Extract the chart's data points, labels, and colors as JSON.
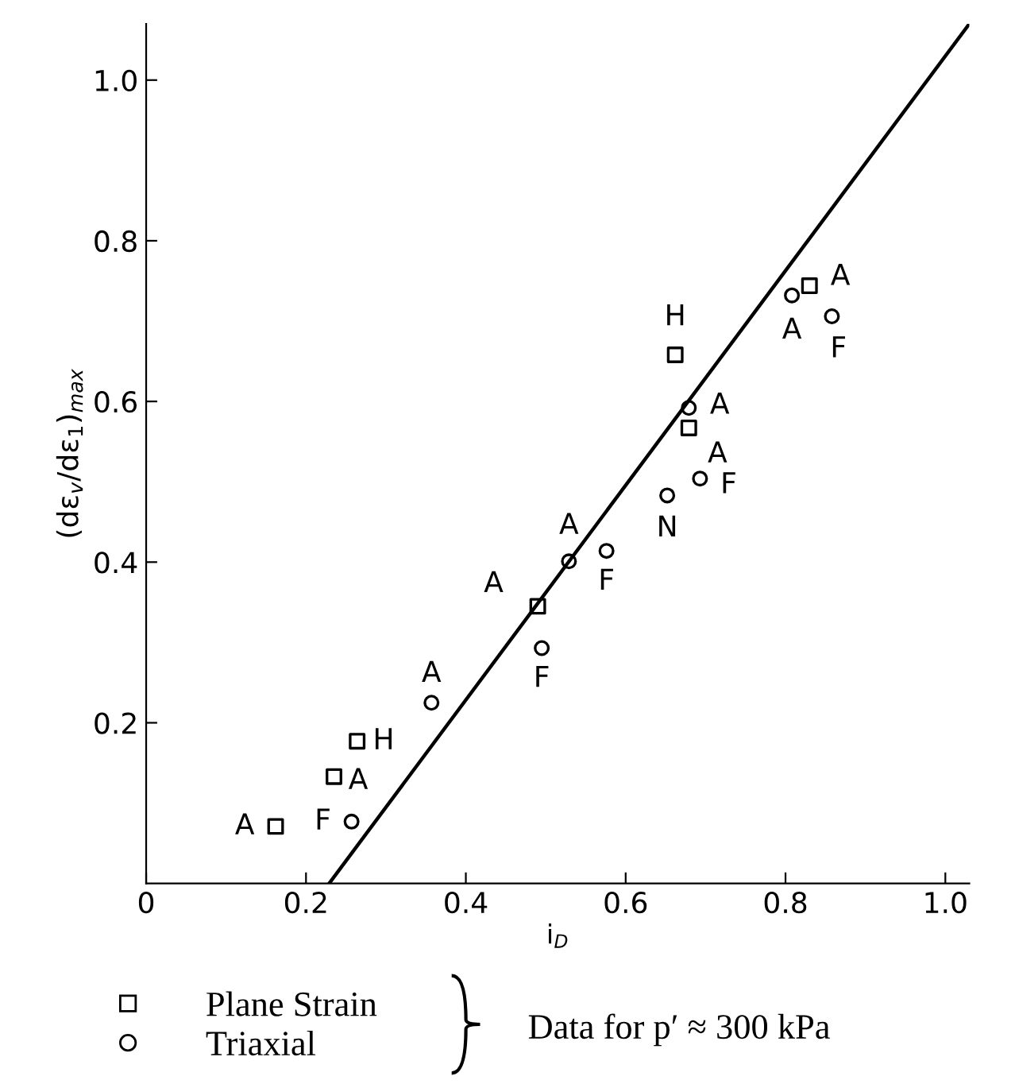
{
  "chart_data": {
    "type": "scatter",
    "xlabel": "i$_{D}$",
    "ylabel": "(dε$_{v}$/dε$_{1}$)$_{max}$",
    "xlim": [
      0,
      1.03
    ],
    "ylim": [
      0,
      1.07
    ],
    "xticks": [
      0,
      0.2,
      0.4,
      0.6,
      0.8,
      {
        "value": 1.0,
        "label": "1.0"
      }
    ],
    "yticks": [
      0.2,
      0.4,
      0.6,
      0.8,
      {
        "value": 1.0,
        "label": "1.0"
      }
    ],
    "grid": false,
    "legend": "bottom left",
    "series": [
      {
        "name": "Plane Strain",
        "color": "#000000",
        "marker": "square",
        "x": [
          0.162,
          0.235,
          0.264,
          0.49,
          0.679,
          0.662,
          0.83
        ],
        "values": [
          0.071,
          0.133,
          0.177,
          0.345,
          0.567,
          0.658,
          0.744
        ]
      },
      {
        "name": "Triaxial",
        "color": "#000000",
        "marker": "circle",
        "x": [
          0.257,
          0.357,
          0.495,
          0.529,
          0.576,
          0.652,
          0.693,
          0.679,
          0.808,
          0.858
        ],
        "values": [
          0.077,
          0.225,
          0.293,
          0.401,
          0.414,
          0.483,
          0.504,
          0.592,
          0.732,
          0.706
        ]
      },
      {
        "type": "line",
        "color": "#000000",
        "line_style": "solid",
        "x": [
          0.229,
          1.03
        ],
        "values": [
          0,
          1.07
        ]
      }
    ],
    "annotations": [
      {
        "text": "A",
        "x": 0.162,
        "y": 0.071
      },
      {
        "text": "F",
        "x": 0.257,
        "y": 0.077
      },
      {
        "text": "A",
        "x": 0.235,
        "y": 0.133
      },
      {
        "text": "H",
        "x": 0.264,
        "y": 0.177
      },
      {
        "text": "A",
        "x": 0.357,
        "y": 0.225
      },
      {
        "text": "A",
        "x": 0.49,
        "y": 0.345
      },
      {
        "text": "F",
        "x": 0.495,
        "y": 0.293
      },
      {
        "text": "A",
        "x": 0.529,
        "y": 0.401
      },
      {
        "text": "F",
        "x": 0.576,
        "y": 0.414
      },
      {
        "text": "N",
        "x": 0.652,
        "y": 0.483
      },
      {
        "text": "F",
        "x": 0.693,
        "y": 0.504
      },
      {
        "text": "A",
        "x": 0.679,
        "y": 0.567
      },
      {
        "text": "A",
        "x": 0.679,
        "y": 0.592
      },
      {
        "text": "H",
        "x": 0.662,
        "y": 0.658
      },
      {
        "text": "A",
        "x": 0.808,
        "y": 0.732
      },
      {
        "text": "A",
        "x": 0.83,
        "y": 0.744
      },
      {
        "text": "F",
        "x": 0.858,
        "y": 0.706
      },
      "Data for p′ ≈ 300 kPa"
    ]
  }
}
